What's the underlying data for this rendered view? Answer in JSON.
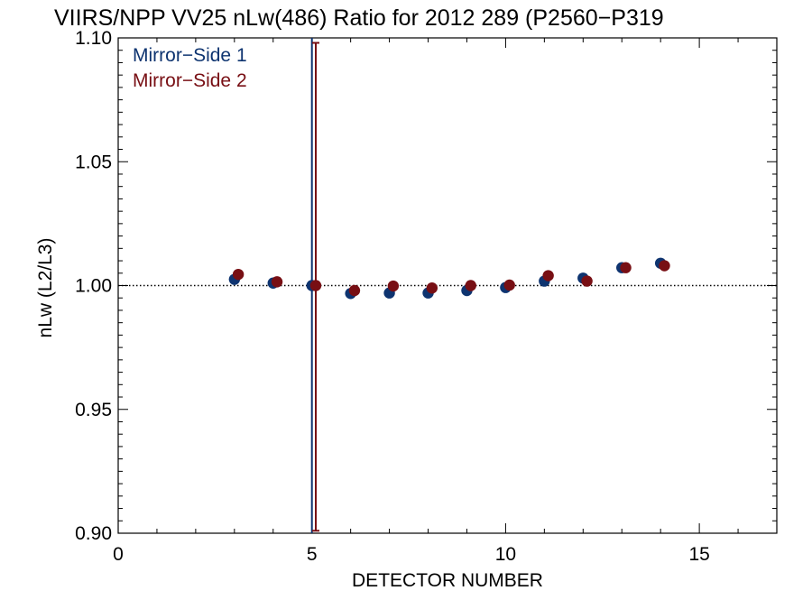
{
  "chart_data": {
    "type": "scatter",
    "title": "VIIRS/NPP VV25 nLw(486) Ratio for 2012 289 (P2560−P319",
    "xlabel": "DETECTOR NUMBER",
    "ylabel": "nLw (L2/L3)",
    "xlim": [
      0,
      17
    ],
    "ylim": [
      0.9,
      1.1
    ],
    "x_ticks": [
      0,
      5,
      10,
      15
    ],
    "x_tick_labels": [
      "0",
      "5",
      "10",
      "15"
    ],
    "y_ticks": [
      0.9,
      0.95,
      1.0,
      1.05,
      1.1
    ],
    "y_tick_labels": [
      "0.90",
      "0.95",
      "1.00",
      "1.05",
      "1.10"
    ],
    "reference_line": 1.0,
    "grid": false,
    "legend_position": "top-left",
    "series": [
      {
        "name": "Mirror−Side 1",
        "color": "#0e3470",
        "x": [
          3,
          4,
          5,
          6,
          7,
          8,
          9,
          10,
          11,
          12,
          13,
          14
        ],
        "y": [
          1.0025,
          1.001,
          1.0,
          0.9968,
          0.997,
          0.997,
          0.998,
          0.9992,
          1.0018,
          1.003,
          1.0072,
          1.009
        ],
        "error_bar": {
          "x": 5,
          "low": 0.9,
          "high": 1.1
        }
      },
      {
        "name": "Mirror−Side 2",
        "color": "#780f14",
        "x": [
          3.1,
          4.1,
          5.1,
          6.1,
          7.1,
          8.1,
          9.1,
          10.1,
          11.1,
          12.1,
          13.1,
          14.1
        ],
        "y": [
          1.0045,
          1.0015,
          1.0,
          0.998,
          0.9998,
          0.999,
          1.0,
          1.0002,
          1.004,
          1.0018,
          1.0072,
          1.008
        ],
        "error_bar": {
          "x": 5.1,
          "low": 0.901,
          "high": 1.098
        }
      }
    ]
  }
}
